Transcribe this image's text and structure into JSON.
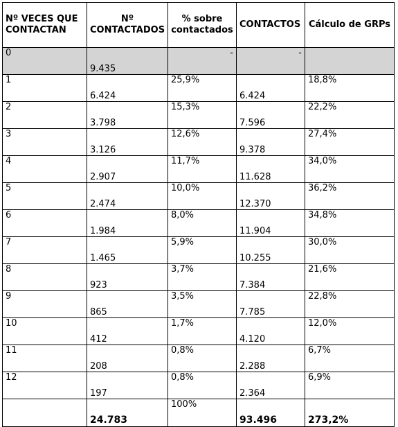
{
  "headers": {
    "veces": "Nº VECES QUE CONTACTAN",
    "contactados": "Nº CONTACTADOS",
    "porcentaje": "% sobre contactados",
    "contactos": "CONTACTOS",
    "grps": "Cálculo de GRPs"
  },
  "zero_row": {
    "veces": "0",
    "contactados": "9.435",
    "porcentaje": "-",
    "contactos": "-",
    "grps": ""
  },
  "rows": [
    {
      "veces": "1",
      "contactados": "6.424",
      "porcentaje": "25,9%",
      "contactos": "6.424",
      "grps": "18,8%"
    },
    {
      "veces": "2",
      "contactados": "3.798",
      "porcentaje": "15,3%",
      "contactos": "7.596",
      "grps": "22,2%"
    },
    {
      "veces": "3",
      "contactados": "3.126",
      "porcentaje": "12,6%",
      "contactos": "9.378",
      "grps": "27,4%"
    },
    {
      "veces": "4",
      "contactados": "2.907",
      "porcentaje": "11,7%",
      "contactos": "11.628",
      "grps": "34,0%"
    },
    {
      "veces": "5",
      "contactados": "2.474",
      "porcentaje": "10,0%",
      "contactos": "12.370",
      "grps": "36,2%"
    },
    {
      "veces": "6",
      "contactados": "1.984",
      "porcentaje": "8,0%",
      "contactos": "11.904",
      "grps": "34,8%"
    },
    {
      "veces": "7",
      "contactados": "1.465",
      "porcentaje": "5,9%",
      "contactos": "10.255",
      "grps": "30,0%"
    },
    {
      "veces": "8",
      "contactados": "923",
      "porcentaje": "3,7%",
      "contactos": "7.384",
      "grps": "21,6%"
    },
    {
      "veces": "9",
      "contactados": "865",
      "porcentaje": "3,5%",
      "contactos": "7.785",
      "grps": "22,8%"
    },
    {
      "veces": "10",
      "contactados": "412",
      "porcentaje": "1,7%",
      "contactos": "4.120",
      "grps": "12,0%"
    },
    {
      "veces": "11",
      "contactados": "208",
      "porcentaje": "0,8%",
      "contactos": "2.288",
      "grps": "6,7%"
    },
    {
      "veces": "12",
      "contactados": "197",
      "porcentaje": "0,8%",
      "contactos": "2.364",
      "grps": "6,9%"
    }
  ],
  "totals": {
    "veces": "",
    "contactados": "24.783",
    "porcentaje": "100%",
    "contactos": "93.496",
    "grps": "273,2%"
  }
}
